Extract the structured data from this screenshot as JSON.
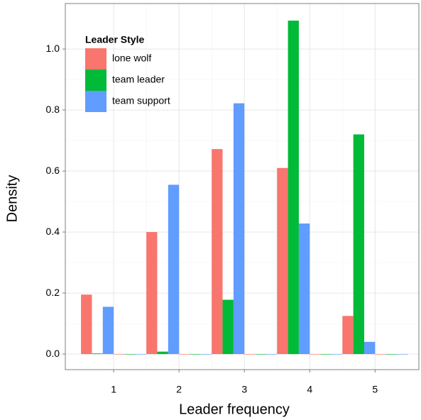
{
  "chart_data": {
    "type": "histogram",
    "xlabel": "Leader frequency",
    "ylabel": "Density",
    "legend_title": "Leader Style",
    "legend": "top-left",
    "grid": true,
    "bins": [
      0.5,
      1,
      1.5,
      2,
      2.5,
      3,
      3.5,
      4,
      4.5,
      5,
      5.5
    ],
    "series": [
      {
        "name": "lone wolf",
        "color": "#F8766D",
        "values": [
          0.195,
          0,
          0.4,
          0,
          0.672,
          0,
          0.61,
          0,
          0.125,
          0
        ]
      },
      {
        "name": "team leader",
        "color": "#00BA38",
        "values": [
          0.002,
          0,
          0.008,
          0,
          0.178,
          0,
          1.093,
          0,
          0.72,
          0
        ]
      },
      {
        "name": "team support",
        "color": "#619CFF",
        "values": [
          0.155,
          0,
          0.555,
          0,
          0.822,
          0,
          0.428,
          0,
          0.04,
          0
        ]
      }
    ],
    "xlim": [
      0.26,
      5.67
    ],
    "xticks": [
      1,
      2,
      3,
      4,
      5
    ],
    "ylim": [
      -0.051,
      1.149
    ],
    "yticks": [
      {
        "value": 0,
        "label": "0.0"
      },
      0.2,
      0.4,
      0.6,
      0.8,
      {
        "value": 1,
        "label": "1.0"
      }
    ]
  }
}
